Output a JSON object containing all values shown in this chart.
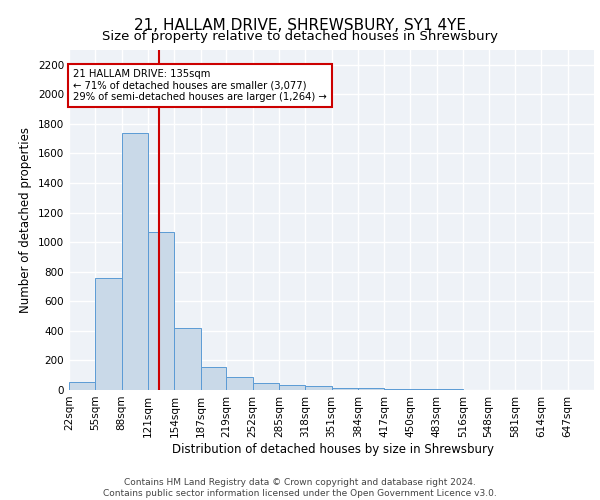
{
  "title": "21, HALLAM DRIVE, SHREWSBURY, SY1 4YE",
  "subtitle": "Size of property relative to detached houses in Shrewsbury",
  "xlabel": "Distribution of detached houses by size in Shrewsbury",
  "ylabel": "Number of detached properties",
  "bin_edges": [
    22,
    55,
    88,
    121,
    154,
    187,
    219,
    252,
    285,
    318,
    351,
    384,
    417,
    450,
    483,
    516,
    548,
    581,
    614,
    647,
    680
  ],
  "bar_heights": [
    55,
    760,
    1740,
    1070,
    420,
    155,
    85,
    45,
    35,
    30,
    15,
    15,
    8,
    5,
    4,
    3,
    2,
    2,
    1,
    1
  ],
  "bar_color": "#c9d9e8",
  "bar_edge_color": "#5b9bd5",
  "property_size": 135,
  "red_line_color": "#cc0000",
  "annotation_line1": "21 HALLAM DRIVE: 135sqm",
  "annotation_line2": "← 71% of detached houses are smaller (3,077)",
  "annotation_line3": "29% of semi-detached houses are larger (1,264) →",
  "annotation_box_color": "white",
  "annotation_box_edge_color": "#cc0000",
  "ylim": [
    0,
    2300
  ],
  "yticks": [
    0,
    200,
    400,
    600,
    800,
    1000,
    1200,
    1400,
    1600,
    1800,
    2000,
    2200
  ],
  "footer_text": "Contains HM Land Registry data © Crown copyright and database right 2024.\nContains public sector information licensed under the Open Government Licence v3.0.",
  "background_color": "#eef2f7",
  "grid_color": "#ffffff",
  "title_fontsize": 11,
  "subtitle_fontsize": 9.5,
  "axis_label_fontsize": 8.5,
  "tick_fontsize": 7.5,
  "footer_fontsize": 6.5
}
